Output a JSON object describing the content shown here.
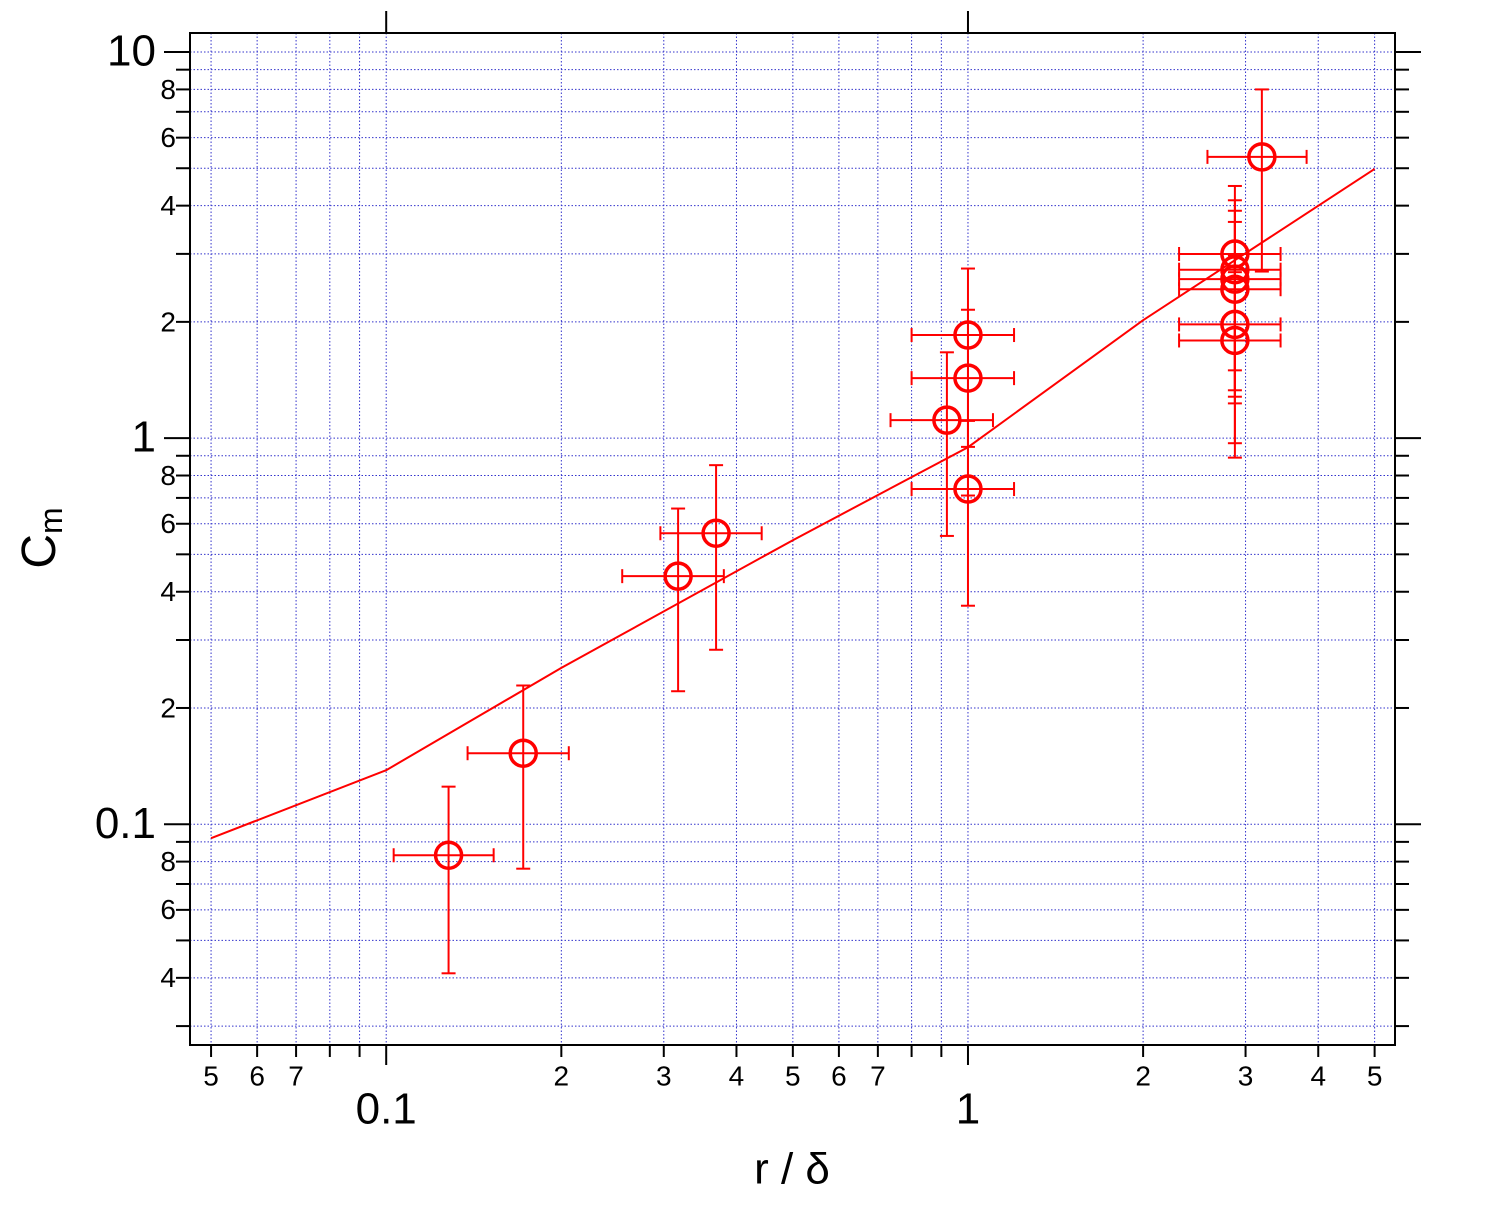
{
  "chart_data": {
    "type": "scatter",
    "xlabel": "r / δ",
    "ylabel": {
      "text": "C",
      "subscript": "m"
    },
    "xscale": "log",
    "yscale": "log",
    "grid": true,
    "xlim": [
      0.046,
      5.42
    ],
    "ylim": [
      0.0268,
      11.2
    ],
    "xticks": [
      {
        "value": 0.05,
        "label": "5"
      },
      {
        "value": 0.06,
        "label": "6"
      },
      {
        "value": 0.07,
        "label": "7"
      },
      0.1,
      {
        "value": 0.2,
        "label": "2"
      },
      {
        "value": 0.3,
        "label": "3"
      },
      {
        "value": 0.4,
        "label": "4"
      },
      {
        "value": 0.5,
        "label": "5"
      },
      {
        "value": 0.6,
        "label": "6"
      },
      {
        "value": 0.7,
        "label": "7"
      },
      1,
      2,
      3,
      4,
      5
    ],
    "xminor_ticks": [
      0.08,
      0.09,
      0.8,
      0.9
    ],
    "yticks": [
      {
        "value": 0.04,
        "label": "4"
      },
      {
        "value": 0.06,
        "label": "6"
      },
      {
        "value": 0.08,
        "label": "8"
      },
      0.1,
      {
        "value": 0.2,
        "label": "2"
      },
      {
        "value": 0.4,
        "label": "4"
      },
      {
        "value": 0.6,
        "label": "6"
      },
      {
        "value": 0.8,
        "label": "8"
      },
      1,
      2,
      4,
      6,
      8,
      10
    ],
    "yminor_ticks": [
      0.03,
      0.05,
      0.07,
      0.09,
      0.3,
      0.5,
      0.7,
      0.9,
      3,
      5,
      7,
      9
    ],
    "series": [
      {
        "color": "#ff0000",
        "marker": "circle",
        "x": [
          0.128,
          0.172,
          0.3175,
          0.369,
          0.92,
          1.0,
          1.0,
          1.0,
          2.876,
          2.876,
          2.876,
          2.876,
          2.876,
          2.876,
          3.2
        ],
        "y": [
          0.0831,
          0.1527,
          0.439,
          0.567,
          1.113,
          1.849,
          1.43,
          0.738,
          2.998,
          2.73,
          2.58,
          2.43,
          1.97,
          1.79,
          5.35
        ],
        "xerr": [
          0.025,
          0.034,
          0.063,
          0.073,
          0.184,
          0.2,
          0.2,
          0.2,
          0.57,
          0.57,
          0.57,
          0.57,
          0.57,
          0.57,
          0.62
        ],
        "yerr": [
          0.042,
          0.076,
          0.218,
          0.284,
          0.555,
          0.9,
          0.72,
          0.37,
          1.5,
          1.4,
          1.3,
          1.2,
          1.0,
          0.9,
          2.65
        ]
      },
      {
        "color": "#ff0000",
        "style": "line",
        "x": [
          0.05,
          0.1,
          0.2,
          0.5,
          1,
          2,
          5
        ],
        "y": [
          0.092,
          0.138,
          0.254,
          0.544,
          0.947,
          2.02,
          4.98
        ]
      }
    ]
  }
}
